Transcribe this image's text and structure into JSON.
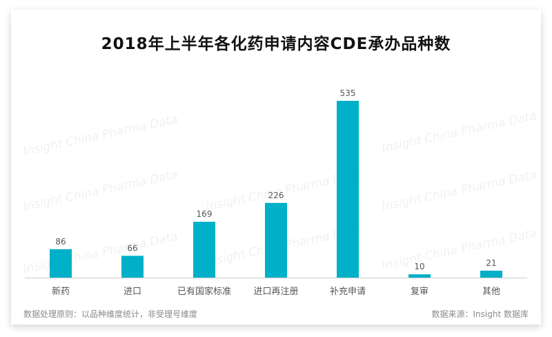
{
  "watermark": "Insight China Pharma Data",
  "note_left": "数据处理原则：以品种维度统计，非受理号维度",
  "note_right": "数据来源：Insight 数据库",
  "colors": {
    "bar": "#00b0c8",
    "axis": "#cccccc",
    "label": "#555555"
  },
  "chart_data": {
    "type": "bar",
    "title": "2018年上半年各化药申请内容CDE承办品种数",
    "categories": [
      "新药",
      "进口",
      "已有国家标准",
      "进口再注册",
      "补充申请",
      "复审",
      "其他"
    ],
    "values": [
      86,
      66,
      169,
      226,
      535,
      10,
      21
    ],
    "ylim": [
      0,
      560
    ],
    "grid": false,
    "data_labels": true
  }
}
